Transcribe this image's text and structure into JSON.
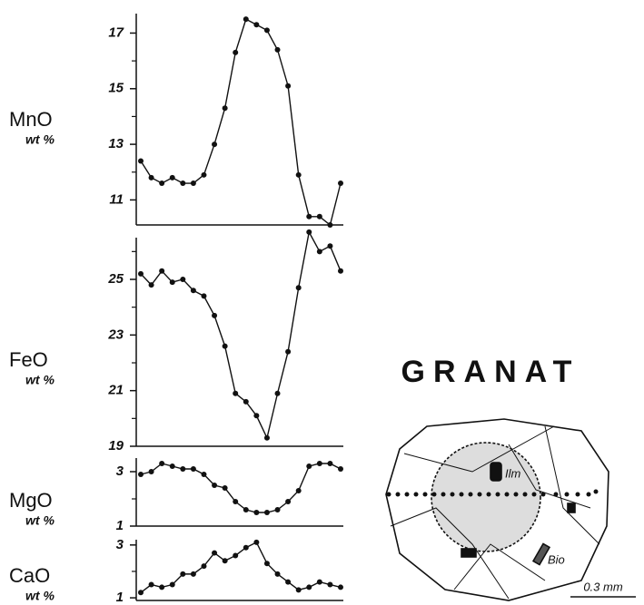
{
  "chart_data": [
    {
      "type": "line",
      "ylabel": "MnO",
      "unit": "wt %",
      "color": "#111111",
      "values": [
        12.4,
        11.8,
        11.6,
        11.8,
        11.6,
        11.6,
        11.9,
        13.0,
        14.3,
        16.3,
        17.5,
        17.3,
        17.1,
        16.4,
        15.1,
        11.9,
        10.4,
        10.4,
        10.1,
        11.6
      ],
      "ylim": [
        10.1,
        17.7
      ],
      "yticks": [
        11,
        13,
        15,
        17
      ],
      "yminorticks": [
        12,
        14,
        16
      ]
    },
    {
      "type": "line",
      "ylabel": "FeO",
      "unit": "wt %",
      "color": "#111111",
      "values": [
        25.2,
        24.8,
        25.3,
        24.9,
        25.0,
        24.6,
        24.4,
        23.7,
        22.6,
        20.9,
        20.6,
        20.1,
        19.3,
        20.9,
        22.4,
        24.7,
        26.7,
        26.0,
        26.2,
        25.3
      ],
      "ylim": [
        19,
        26.5
      ],
      "yticks": [
        19,
        21,
        23,
        25
      ],
      "yminorticks": [
        20,
        22,
        24,
        26
      ]
    },
    {
      "type": "line",
      "ylabel": "MgO",
      "unit": "wt %",
      "color": "#111111",
      "values": [
        2.9,
        3.0,
        3.3,
        3.2,
        3.1,
        3.1,
        2.9,
        2.5,
        2.4,
        1.9,
        1.6,
        1.5,
        1.5,
        1.6,
        1.9,
        2.3,
        3.2,
        3.3,
        3.3,
        3.1
      ],
      "ylim": [
        1,
        3.5
      ],
      "yticks": [
        1,
        3
      ],
      "yminorticks": [
        2
      ]
    },
    {
      "type": "line",
      "ylabel": "CaO",
      "unit": "wt %",
      "color": "#111111",
      "values": [
        1.2,
        1.5,
        1.4,
        1.5,
        1.9,
        1.9,
        2.2,
        2.7,
        2.4,
        2.6,
        2.9,
        3.1,
        2.3,
        1.9,
        1.6,
        1.3,
        1.4,
        1.6,
        1.5,
        1.4
      ],
      "ylim": [
        0.9,
        3.2
      ],
      "yticks": [
        1,
        3
      ],
      "yminorticks": [
        2
      ]
    }
  ],
  "figure": {
    "title": "GRANAT",
    "labels": [
      "Ilm",
      "Bio"
    ],
    "scale": "0.3 mm"
  }
}
